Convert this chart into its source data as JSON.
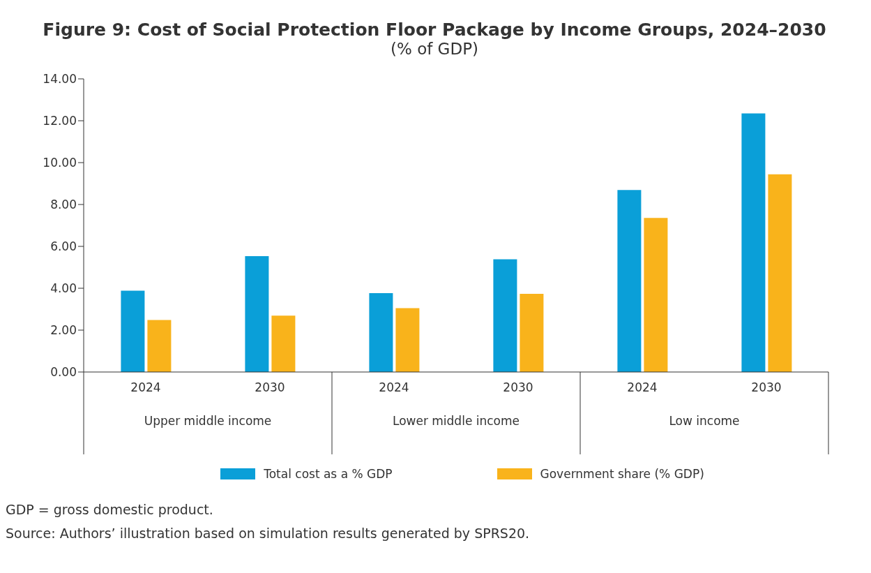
{
  "chart_data": {
    "type": "bar",
    "title": "Figure 9: Cost of Social Protection Floor Package by Income Groups, 2024–2030",
    "subtitle": "(% of GDP)",
    "categories": [
      "2024",
      "2030",
      "2024",
      "2030",
      "2024",
      "2030"
    ],
    "series": [
      {
        "name": "Total cost as a % GDP",
        "color": "#0a9fd8",
        "values": [
          3.88,
          5.53,
          3.77,
          5.38,
          8.69,
          12.35
        ]
      },
      {
        "name": "Government share (% GDP)",
        "color": "#f9b31b",
        "values": [
          2.48,
          2.69,
          3.05,
          3.73,
          7.36,
          9.44
        ]
      }
    ],
    "ylim": [
      0,
      14
    ],
    "yticks": [
      {
        "value": 0,
        "label": "0.00"
      },
      {
        "value": 2,
        "label": "2.00"
      },
      {
        "value": 4,
        "label": "4.00"
      },
      {
        "value": 6,
        "label": "6.00"
      },
      {
        "value": 8,
        "label": "8.00"
      },
      {
        "value": 10,
        "label": "10.00"
      },
      {
        "value": 12,
        "label": "12.00"
      },
      {
        "value": 14,
        "label": "14.00"
      }
    ],
    "grid": false,
    "legend": "bottom",
    "annotations": [
      "Upper middle income",
      "Lower middle income",
      "Low income",
      "GDP = gross domestic product.",
      "Source: Authors’ illustration based on simulation results generated by SPRS20."
    ]
  }
}
